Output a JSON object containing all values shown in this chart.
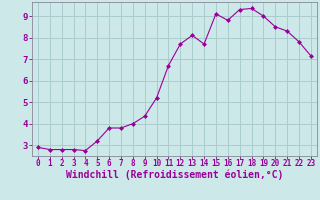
{
  "x": [
    0,
    1,
    2,
    3,
    4,
    5,
    6,
    7,
    8,
    9,
    10,
    11,
    12,
    13,
    14,
    15,
    16,
    17,
    18,
    19,
    20,
    21,
    22,
    23
  ],
  "y": [
    2.9,
    2.8,
    2.8,
    2.8,
    2.75,
    3.2,
    3.8,
    3.8,
    4.0,
    4.35,
    5.2,
    6.7,
    7.7,
    8.1,
    7.7,
    9.1,
    8.8,
    9.3,
    9.35,
    9.0,
    8.5,
    8.3,
    7.8,
    7.15
  ],
  "line_color": "#990099",
  "marker": "D",
  "marker_size": 2,
  "bg_color": "#cce8e8",
  "grid_color": "#aacccc",
  "xlabel": "Windchill (Refroidissement éolien,°C)",
  "xlabel_color": "#990099",
  "ylabel_ticks": [
    3,
    4,
    5,
    6,
    7,
    8,
    9
  ],
  "xlim": [
    -0.5,
    23.5
  ],
  "ylim": [
    2.5,
    9.65
  ],
  "xtick_labels": [
    "0",
    "1",
    "2",
    "3",
    "4",
    "5",
    "6",
    "7",
    "8",
    "9",
    "10",
    "11",
    "12",
    "13",
    "14",
    "15",
    "16",
    "17",
    "18",
    "19",
    "20",
    "21",
    "22",
    "23"
  ],
  "tick_color": "#990099",
  "tick_fontsize": 5.5,
  "xlabel_fontsize": 7.0,
  "linewidth": 0.8
}
